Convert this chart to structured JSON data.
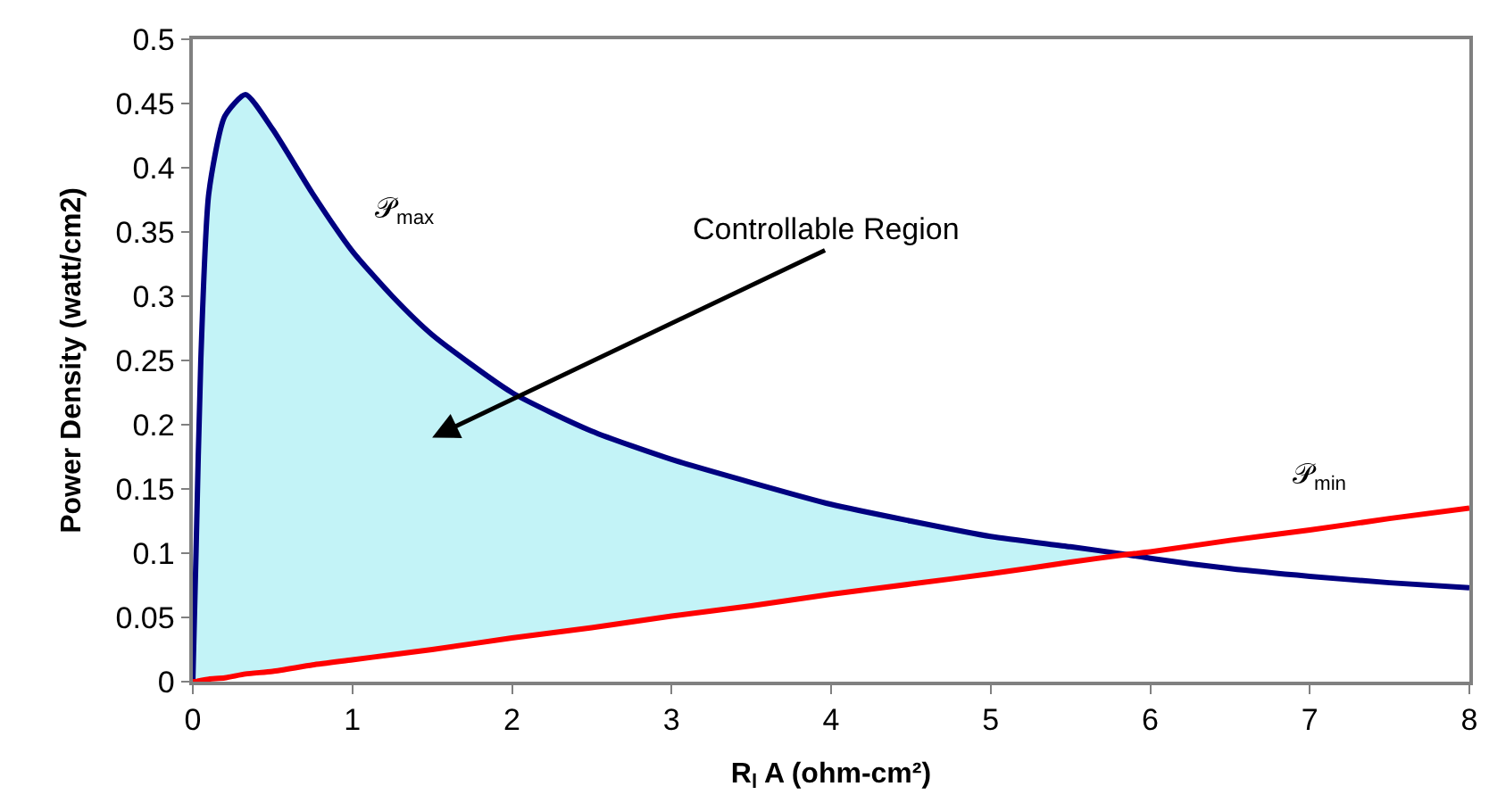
{
  "chart_data": {
    "type": "line",
    "xlabel": "R$_{l}$ A (ohm-cm²)",
    "ylabel": "Power Density (watt/cm2)",
    "x": [
      0,
      0.02,
      0.05,
      0.1,
      0.2,
      0.33,
      0.5,
      0.75,
      1,
      1.25,
      1.5,
      2,
      2.5,
      3,
      3.5,
      4,
      4.5,
      5,
      5.5,
      5.85,
      6,
      6.5,
      7,
      7.5,
      8
    ],
    "series": [
      {
        "name": "𝒫$_{max}$",
        "color": "#000080",
        "values": [
          0,
          0.1,
          0.25,
          0.38,
          0.44,
          0.457,
          0.43,
          0.38,
          0.335,
          0.3,
          0.27,
          0.225,
          0.195,
          0.173,
          0.155,
          0.138,
          0.125,
          0.113,
          0.105,
          0.099,
          0.096,
          0.088,
          0.082,
          0.077,
          0.073
        ],
        "lower": [
          0,
          0,
          0.001,
          0.002,
          0.003,
          0.006,
          0.008,
          0.013,
          0.017,
          0.021,
          0.025,
          0.034,
          0.042,
          0.051,
          0.059,
          0.068,
          0.076,
          0.084,
          0.093,
          0.099,
          null,
          null,
          null,
          null,
          null
        ],
        "upper": [
          0,
          0.1,
          0.25,
          0.38,
          0.44,
          0.457,
          0.43,
          0.38,
          0.335,
          0.3,
          0.27,
          0.225,
          0.195,
          0.173,
          0.155,
          0.138,
          0.125,
          0.113,
          0.105,
          0.099,
          null,
          null,
          null,
          null,
          null
        ]
      },
      {
        "name": "𝒫$_{min}$",
        "color": "#ff0000",
        "values": [
          0,
          0,
          0.001,
          0.002,
          0.003,
          0.006,
          0.008,
          0.013,
          0.017,
          0.021,
          0.025,
          0.034,
          0.042,
          0.051,
          0.059,
          0.068,
          0.076,
          0.084,
          0.093,
          0.099,
          0.101,
          0.11,
          0.118,
          0.127,
          0.135
        ]
      }
    ],
    "annotations": [
      "Controllable Region"
    ],
    "xlim": [
      0,
      8
    ],
    "xticks": [
      0,
      1,
      2,
      3,
      4,
      5,
      6,
      7,
      8
    ],
    "ylim": [
      0,
      0.5
    ],
    "yticks": [
      0,
      0.05,
      0.1,
      0.15,
      0.2,
      0.25,
      0.3,
      0.35,
      0.4,
      0.45,
      0.5
    ],
    "legend": false,
    "marker": "none",
    "line_style": "solid"
  }
}
